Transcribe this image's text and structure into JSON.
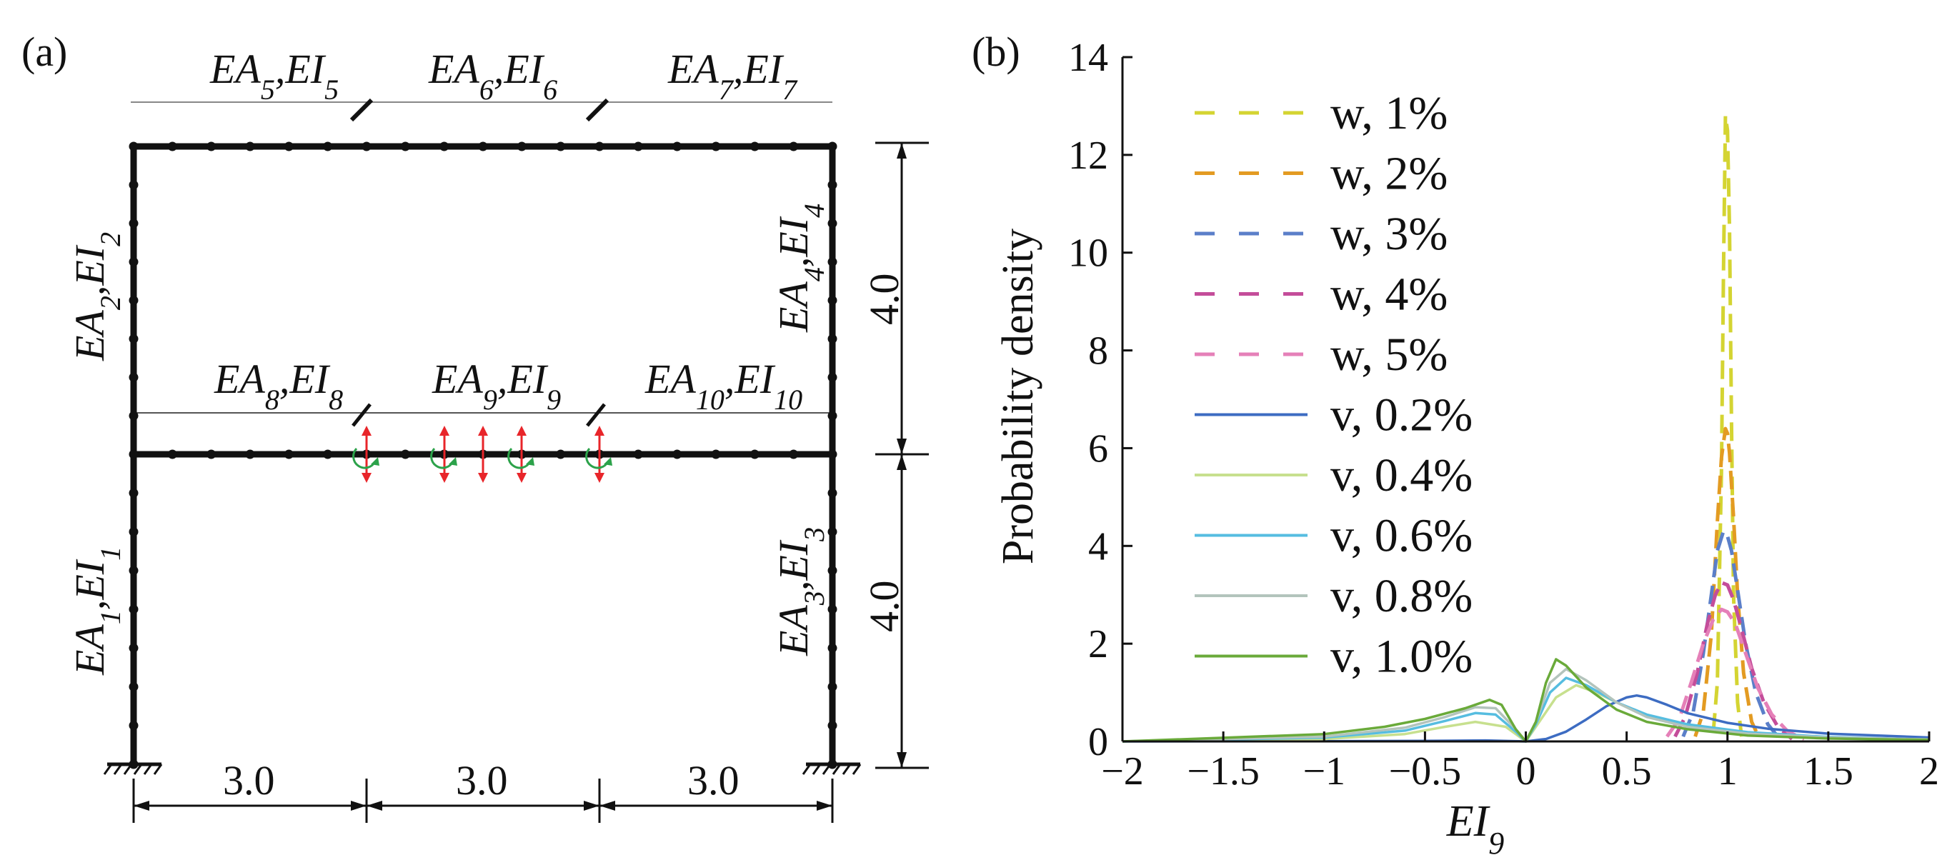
{
  "panel_a": {
    "tag": "(a)",
    "members": [
      {
        "base": "EA",
        "sub1": "5",
        "sep": ",",
        "base2": "EI",
        "sub2": "5"
      },
      {
        "base": "EA",
        "sub1": "6",
        "sep": ",",
        "base2": "EI",
        "sub2": "6"
      },
      {
        "base": "EA",
        "sub1": "7",
        "sep": ",",
        "base2": "EI",
        "sub2": "7"
      },
      {
        "base": "EA",
        "sub1": "8",
        "sep": ",",
        "base2": "EI",
        "sub2": "8"
      },
      {
        "base": "EA",
        "sub1": "9",
        "sep": ",",
        "base2": "EI",
        "sub2": "9"
      },
      {
        "base": "EA",
        "sub1": "10",
        "sep": ",",
        "base2": "EI",
        "sub2": "10"
      },
      {
        "base": "EA",
        "sub1": "2",
        "sep": ",",
        "base2": "EI",
        "sub2": "2"
      },
      {
        "base": "EA",
        "sub1": "1",
        "sep": ",",
        "base2": "EI",
        "sub2": "1"
      },
      {
        "base": "EA",
        "sub1": "4",
        "sep": ",",
        "base2": "EI",
        "sub2": "4"
      },
      {
        "base": "EA",
        "sub1": "3",
        "sep": ",",
        "base2": "EI",
        "sub2": "3"
      }
    ],
    "dims": {
      "span1": "3.0",
      "span2": "3.0",
      "span3": "3.0",
      "story_upper": "4.0",
      "story_lower": "4.0"
    }
  },
  "chart_data": {
    "tag": "(b)",
    "type": "line",
    "ylabel": "Probability density",
    "xlabel_base": "EI",
    "xlabel_sub": "9",
    "xlim": [
      -2,
      2
    ],
    "ylim": [
      0,
      14
    ],
    "xticks": [
      -2,
      -1.5,
      -1,
      -0.5,
      0,
      0.5,
      1,
      1.5,
      2
    ],
    "xtick_labels": [
      "−2",
      "−1.5",
      "−1",
      "−0.5",
      "0",
      "0.5",
      "1",
      "1.5",
      "2"
    ],
    "yticks": [
      0,
      2,
      4,
      6,
      8,
      10,
      12,
      14
    ],
    "ytick_labels": [
      "0",
      "2",
      "4",
      "6",
      "8",
      "10",
      "12",
      "14"
    ],
    "legend_position": "top-left",
    "series": [
      {
        "name": "w, 1%",
        "color": "#d4d432",
        "dash": true,
        "x": [
          0.93,
          0.95,
          0.97,
          0.98,
          0.99,
          1.0,
          1.01,
          1.02,
          1.03,
          1.05,
          1.07
        ],
        "y": [
          0.2,
          1.2,
          5.5,
          9.5,
          12.8,
          12.5,
          10.5,
          6.5,
          3.0,
          0.8,
          0.1
        ]
      },
      {
        "name": "w, 2%",
        "color": "#e39b22",
        "dash": true,
        "x": [
          0.84,
          0.88,
          0.92,
          0.95,
          0.97,
          0.99,
          1.0,
          1.01,
          1.03,
          1.05,
          1.08,
          1.12,
          1.16
        ],
        "y": [
          0.1,
          0.6,
          2.2,
          4.5,
          5.8,
          6.4,
          6.3,
          5.9,
          4.6,
          3.0,
          1.4,
          0.4,
          0.05
        ]
      },
      {
        "name": "w, 3%",
        "color": "#5b7fc9",
        "dash": true,
        "x": [
          0.78,
          0.83,
          0.88,
          0.92,
          0.95,
          0.98,
          1.0,
          1.02,
          1.05,
          1.09,
          1.14,
          1.2,
          1.26
        ],
        "y": [
          0.1,
          0.6,
          1.8,
          3.0,
          3.9,
          4.3,
          4.2,
          3.9,
          3.1,
          2.0,
          1.0,
          0.35,
          0.05
        ]
      },
      {
        "name": "w, 4%",
        "color": "#c44d9a",
        "dash": true,
        "x": [
          0.74,
          0.79,
          0.85,
          0.9,
          0.94,
          0.97,
          1.0,
          1.03,
          1.07,
          1.12,
          1.18,
          1.25,
          1.32
        ],
        "y": [
          0.1,
          0.5,
          1.4,
          2.4,
          3.0,
          3.25,
          3.2,
          2.9,
          2.3,
          1.5,
          0.8,
          0.3,
          0.05
        ]
      },
      {
        "name": "w, 5%",
        "color": "#e580b8",
        "dash": true,
        "x": [
          0.7,
          0.76,
          0.82,
          0.88,
          0.93,
          0.97,
          1.0,
          1.04,
          1.09,
          1.15,
          1.22,
          1.3,
          1.38
        ],
        "y": [
          0.1,
          0.45,
          1.2,
          2.0,
          2.5,
          2.7,
          2.65,
          2.4,
          1.8,
          1.1,
          0.55,
          0.2,
          0.05
        ]
      },
      {
        "name": "v, 0.2%",
        "color": "#3d6cc2",
        "dash": false,
        "x": [
          -2.0,
          -1.0,
          -0.5,
          -0.2,
          0.0,
          0.1,
          0.2,
          0.3,
          0.4,
          0.5,
          0.55,
          0.6,
          0.7,
          0.8,
          1.0,
          1.2,
          1.5,
          2.0
        ],
        "y": [
          0.0,
          0.005,
          0.01,
          0.02,
          0.0,
          0.05,
          0.2,
          0.45,
          0.72,
          0.9,
          0.94,
          0.9,
          0.75,
          0.58,
          0.38,
          0.26,
          0.16,
          0.08
        ]
      },
      {
        "name": "v, 0.4%",
        "color": "#c7e08e",
        "dash": false,
        "x": [
          -2.0,
          -1.0,
          -0.6,
          -0.4,
          -0.25,
          -0.1,
          0.0,
          0.05,
          0.15,
          0.25,
          0.35,
          0.45,
          0.55,
          0.7,
          0.9,
          1.2,
          1.6,
          2.0
        ],
        "y": [
          0.0,
          0.05,
          0.15,
          0.3,
          0.4,
          0.3,
          0.0,
          0.3,
          0.9,
          1.15,
          1.0,
          0.8,
          0.6,
          0.4,
          0.25,
          0.14,
          0.07,
          0.04
        ]
      },
      {
        "name": "v, 0.6%",
        "color": "#56bde0",
        "dash": false,
        "x": [
          -2.0,
          -1.0,
          -0.6,
          -0.4,
          -0.25,
          -0.15,
          -0.05,
          0.0,
          0.05,
          0.12,
          0.2,
          0.3,
          0.45,
          0.6,
          0.8,
          1.1,
          1.5,
          2.0
        ],
        "y": [
          0.0,
          0.08,
          0.22,
          0.42,
          0.58,
          0.55,
          0.2,
          0.0,
          0.35,
          1.0,
          1.3,
          1.15,
          0.8,
          0.55,
          0.35,
          0.19,
          0.09,
          0.04
        ]
      },
      {
        "name": "v, 0.8%",
        "color": "#b3c4bc",
        "dash": false,
        "x": [
          -2.0,
          -1.0,
          -0.6,
          -0.4,
          -0.25,
          -0.15,
          -0.05,
          0.0,
          0.05,
          0.12,
          0.2,
          0.3,
          0.45,
          0.6,
          0.8,
          1.1,
          1.5,
          2.0
        ],
        "y": [
          0.0,
          0.1,
          0.28,
          0.5,
          0.7,
          0.68,
          0.25,
          0.0,
          0.4,
          1.2,
          1.48,
          1.25,
          0.8,
          0.5,
          0.3,
          0.16,
          0.08,
          0.04
        ]
      },
      {
        "name": "v, 1.0%",
        "color": "#6aaa3a",
        "dash": false,
        "x": [
          -2.0,
          -1.0,
          -0.7,
          -0.5,
          -0.3,
          -0.18,
          -0.12,
          -0.05,
          0.0,
          0.05,
          0.1,
          0.15,
          0.2,
          0.3,
          0.45,
          0.6,
          0.8,
          1.1,
          1.5,
          2.0
        ],
        "y": [
          0.0,
          0.15,
          0.3,
          0.46,
          0.68,
          0.85,
          0.75,
          0.25,
          0.0,
          0.4,
          1.2,
          1.68,
          1.55,
          1.1,
          0.65,
          0.4,
          0.25,
          0.12,
          0.06,
          0.03
        ]
      }
    ]
  }
}
